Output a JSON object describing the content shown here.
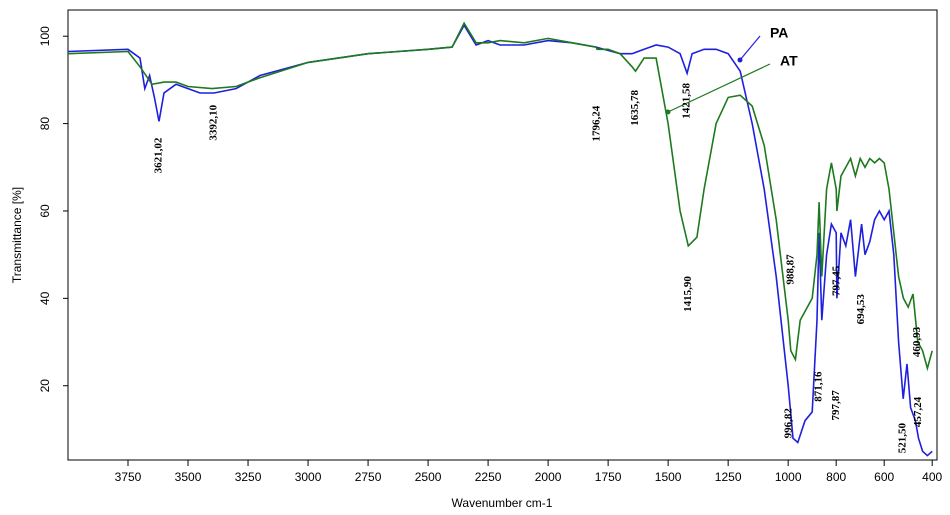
{
  "chart_data": {
    "type": "line",
    "x_label": "Wavenumber cm-1",
    "y_label": "Transmittance [%]",
    "xlim": [
      4000,
      380
    ],
    "ylim": [
      3,
      106
    ],
    "xticks": [
      3750,
      3500,
      3250,
      3000,
      2750,
      2500,
      2250,
      2000,
      1750,
      1500,
      1250,
      1000,
      800,
      600,
      400
    ],
    "yticks": [
      20,
      40,
      60,
      80,
      100
    ],
    "series": [
      {
        "name": "PA",
        "color": "#1f1fe0",
        "x": [
          4000,
          3750,
          3700,
          3680,
          3660,
          3640,
          3621,
          3600,
          3550,
          3500,
          3450,
          3392,
          3300,
          3200,
          3000,
          2750,
          2500,
          2400,
          2350,
          2300,
          2250,
          2200,
          2100,
          2000,
          1900,
          1800,
          1700,
          1650,
          1600,
          1550,
          1500,
          1450,
          1421,
          1400,
          1350,
          1300,
          1250,
          1200,
          1150,
          1100,
          1050,
          1000,
          980,
          960,
          930,
          900,
          880,
          871,
          860,
          840,
          820,
          800,
          797,
          780,
          760,
          740,
          720,
          694,
          680,
          660,
          640,
          620,
          600,
          580,
          560,
          540,
          521,
          505,
          490,
          470,
          457,
          440,
          420,
          400
        ],
        "values": [
          96.5,
          97,
          95,
          88,
          91,
          86,
          80.5,
          87,
          89,
          88,
          87,
          87,
          88,
          91,
          94,
          96,
          97,
          97.5,
          102.5,
          98,
          99,
          98,
          98,
          99,
          98.5,
          97.5,
          96,
          96,
          97,
          98,
          97.5,
          96,
          91.5,
          96,
          97,
          97,
          96,
          92,
          80,
          65,
          45,
          20,
          8,
          7,
          12,
          14,
          35,
          55,
          35,
          50,
          57,
          55,
          40,
          55,
          52,
          58,
          45,
          57,
          50,
          53,
          58,
          60,
          58,
          60,
          50,
          30,
          17,
          25,
          15,
          12,
          8,
          5,
          4,
          5
        ]
      },
      {
        "name": "AT",
        "color": "#1e7a1e",
        "x": [
          4000,
          3750,
          3700,
          3650,
          3600,
          3550,
          3500,
          3400,
          3300,
          3200,
          3000,
          2750,
          2500,
          2400,
          2350,
          2300,
          2250,
          2200,
          2100,
          2000,
          1900,
          1800,
          1796,
          1750,
          1700,
          1650,
          1636,
          1600,
          1550,
          1500,
          1450,
          1416,
          1380,
          1350,
          1300,
          1250,
          1200,
          1150,
          1100,
          1050,
          1000,
          989,
          970,
          950,
          900,
          880,
          871,
          860,
          840,
          820,
          800,
          797,
          780,
          760,
          740,
          720,
          700,
          680,
          660,
          640,
          620,
          600,
          580,
          560,
          540,
          520,
          500,
          480,
          460,
          440,
          420,
          400
        ],
        "values": [
          96,
          96.5,
          93,
          89,
          89.5,
          89.5,
          88.5,
          88,
          88.5,
          90.5,
          94,
          96,
          97,
          97.5,
          103,
          98.5,
          98.5,
          99,
          98.5,
          99.5,
          98.5,
          97.5,
          97,
          97,
          96,
          93,
          92,
          95,
          95,
          80,
          60,
          52,
          54,
          65,
          80,
          86,
          86.5,
          84,
          75,
          58,
          35,
          28,
          26,
          35,
          40,
          50,
          62,
          45,
          65,
          71,
          65,
          60,
          68,
          70,
          72,
          68,
          72,
          70,
          72,
          71,
          72,
          71,
          65,
          55,
          45,
          40,
          38,
          41,
          30,
          28,
          24,
          28
        ]
      }
    ],
    "annotations": [
      {
        "text": "3621,02",
        "x": 3621.02,
        "y": 72.7
      },
      {
        "text": "3392,10",
        "x": 3392.1,
        "y": 80.2
      },
      {
        "text": "1796,24",
        "x": 1796.24,
        "y": 80
      },
      {
        "text": "1635,78",
        "x": 1635.78,
        "y": 83.6
      },
      {
        "text": "1421,58",
        "x": 1421.58,
        "y": 85.2
      },
      {
        "text": "1415,90",
        "x": 1415.9,
        "y": 41
      },
      {
        "text": "988,87",
        "x": 988.87,
        "y": 46.6
      },
      {
        "text": "996,82",
        "x": 996.82,
        "y": 11.4
      },
      {
        "text": "871,16",
        "x": 871.16,
        "y": 19.8
      },
      {
        "text": "797,45",
        "x": 797.45,
        "y": 44
      },
      {
        "text": "797,87",
        "x": 797.87,
        "y": 15.5
      },
      {
        "text": "694,53",
        "x": 694.53,
        "y": 37.5
      },
      {
        "text": "521,50",
        "x": 521.5,
        "y": 8
      },
      {
        "text": "457,24",
        "x": 457.24,
        "y": 14
      },
      {
        "text": "460,93",
        "x": 460.93,
        "y": 30
      }
    ]
  }
}
